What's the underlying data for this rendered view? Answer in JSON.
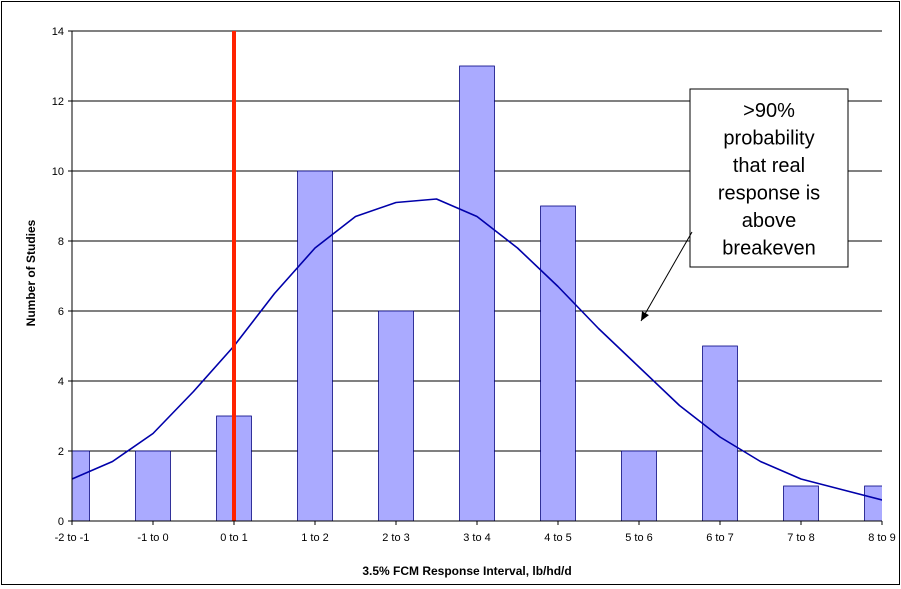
{
  "chart_data": {
    "type": "bar",
    "categories": [
      "-2 to -1",
      "-1 to 0",
      "0 to 1",
      "1 to 2",
      "2 to 3",
      "3 to 4",
      "4 to 5",
      "5 to 6",
      "6 to 7",
      "7 to 8",
      "8 to 9"
    ],
    "values": [
      2,
      2,
      3,
      10,
      6,
      13,
      9,
      2,
      5,
      1,
      1
    ],
    "curve": {
      "x": [
        -0.5,
        0,
        0.5,
        1,
        1.5,
        2,
        2.5,
        3,
        3.5,
        4,
        4.5,
        5,
        5.5,
        6,
        6.5,
        7,
        7.5,
        8,
        8.5,
        9,
        9.5,
        10,
        10.5
      ],
      "y": [
        0.8,
        1.2,
        1.7,
        2.5,
        3.7,
        5.0,
        6.5,
        7.8,
        8.7,
        9.1,
        9.2,
        8.7,
        7.8,
        6.7,
        5.5,
        4.4,
        3.3,
        2.4,
        1.7,
        1.2,
        0.9,
        0.6,
        0.5
      ]
    },
    "breakeven_x": 2.5,
    "xlabel": "3.5% FCM Response Interval, lb/hd/d",
    "ylabel": "Number of Studies",
    "ylim": [
      0,
      14
    ],
    "yticks": [
      0,
      2,
      4,
      6,
      8,
      10,
      12,
      14
    ],
    "grid": true,
    "annotation": {
      "lines": [
        ">90%",
        "probability",
        "that real",
        "response is",
        "above",
        "breakeven"
      ]
    },
    "colors": {
      "bar_fill": "#aaaaff",
      "bar_stroke": "#000080",
      "curve": "#0000aa",
      "breakeven_line": "#ff2200",
      "gridline": "#000000"
    }
  }
}
